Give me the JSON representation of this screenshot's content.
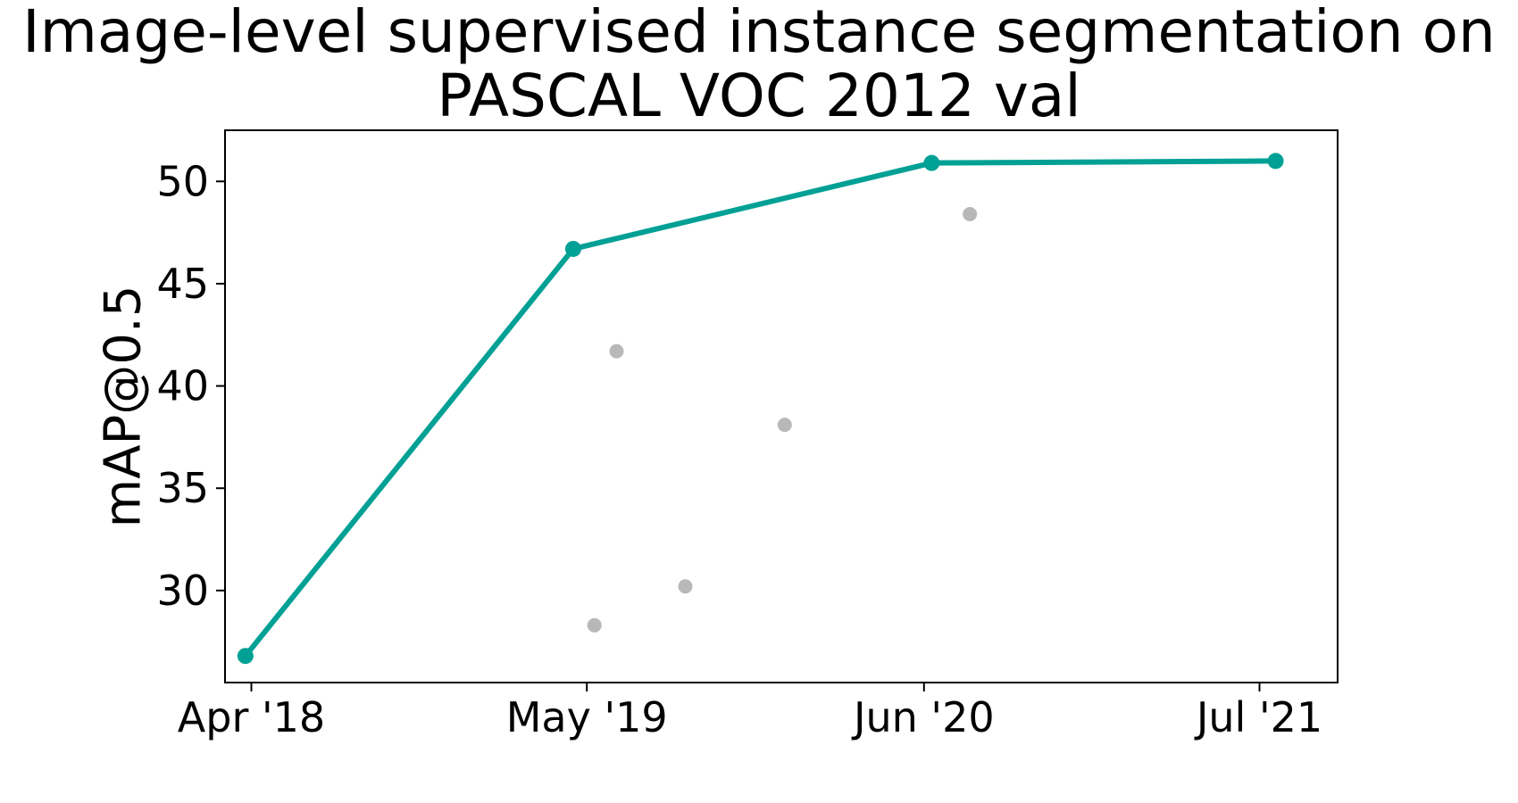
{
  "chart_data": {
    "type": "line",
    "title_line1": "Image-level supervised instance segmentation on",
    "title_line2": "PASCAL VOC 2012 val",
    "xlabel": "",
    "ylabel": "mAP@0.5",
    "x_axis": "date",
    "xlim": [
      "2018-03-01",
      "2021-10-01"
    ],
    "ylim": [
      25.5,
      52.5
    ],
    "xticks": [
      {
        "date": "2018-04-01",
        "label": "Apr '18"
      },
      {
        "date": "2019-05-01",
        "label": "May '19"
      },
      {
        "date": "2020-06-01",
        "label": "Jun '20"
      },
      {
        "date": "2021-07-01",
        "label": "Jul '21"
      }
    ],
    "yticks": [
      30,
      35,
      40,
      45,
      50
    ],
    "grid": false,
    "series": [
      {
        "color": "#00a095",
        "points": [
          {
            "x": "2018-03-25",
            "y": 26.8
          },
          {
            "x": "2019-04-15",
            "y": 46.7
          },
          {
            "x": "2020-06-10",
            "y": 50.9
          },
          {
            "x": "2021-07-20",
            "y": 51.0
          }
        ]
      },
      {
        "color": "#b8b8b8",
        "points": [
          {
            "x": "2019-05-10",
            "y": 28.3
          },
          {
            "x": "2019-06-05",
            "y": 41.7
          },
          {
            "x": "2019-08-25",
            "y": 30.2
          },
          {
            "x": "2019-12-20",
            "y": 38.1
          },
          {
            "x": "2020-07-25",
            "y": 48.4
          }
        ]
      }
    ]
  }
}
